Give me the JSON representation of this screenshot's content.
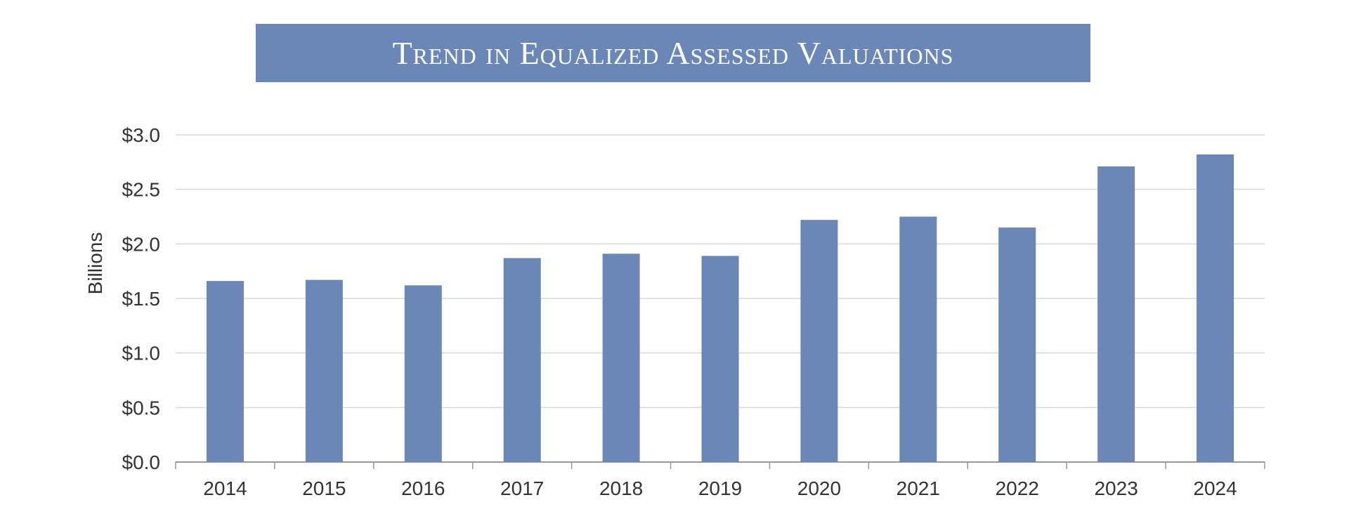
{
  "chart_data": {
    "type": "bar",
    "title": "Trend in Equalized Assessed Valuations",
    "xlabel": "",
    "ylabel": "Billions",
    "categories": [
      "2014",
      "2015",
      "2016",
      "2017",
      "2018",
      "2019",
      "2020",
      "2021",
      "2022",
      "2023",
      "2024"
    ],
    "values": [
      1.66,
      1.67,
      1.62,
      1.87,
      1.91,
      1.89,
      2.22,
      2.25,
      2.15,
      2.71,
      2.82
    ],
    "ylim": [
      0,
      3.0
    ],
    "yticks": [
      0.0,
      0.5,
      1.0,
      1.5,
      2.0,
      2.5,
      3.0
    ],
    "ytick_labels": [
      "$0.0",
      "$0.5",
      "$1.0",
      "$1.5",
      "$2.0",
      "$2.5",
      "$3.0"
    ],
    "grid": true,
    "legend": "none",
    "colors": {
      "bar": "#6a87b8",
      "grid": "#d9d9d9",
      "axis": "#999999",
      "title_banner": "#6a87b8",
      "title_text": "#ffffff"
    }
  }
}
